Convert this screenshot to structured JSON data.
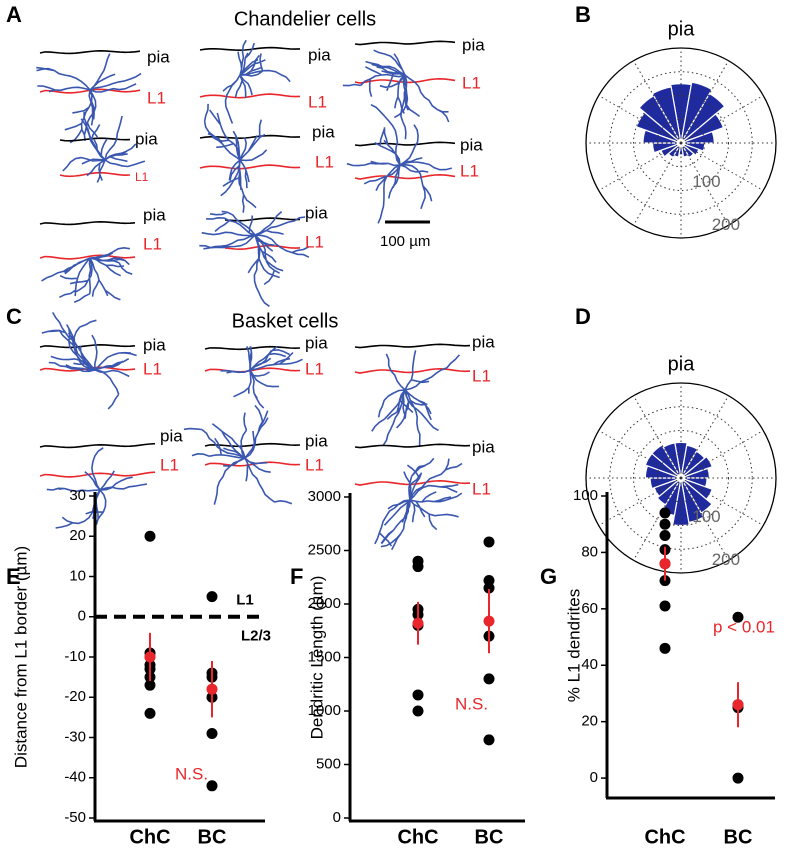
{
  "panel_labels": [
    "A",
    "B",
    "C",
    "D",
    "E",
    "F",
    "G"
  ],
  "chandelier": {
    "title": "Chandelier cells",
    "pia": "pia",
    "l1": "L1",
    "scale_bar": "100 µm"
  },
  "basket": {
    "title": "Basket cells",
    "pia": "pia",
    "l1": "L1"
  },
  "chart_data": [
    {
      "type": "rose",
      "title": "pia",
      "color": "#1f2a9e",
      "values": [
        125,
        130,
        120,
        95,
        70,
        50,
        40,
        35,
        30,
        25,
        30,
        35,
        45,
        60,
        80,
        100,
        115,
        120
      ],
      "rlim": [
        0,
        200
      ],
      "rticks": [
        100,
        200
      ],
      "rgrid": [
        50,
        100,
        150
      ]
    },
    {
      "type": "rose",
      "title": "pia",
      "color": "#1f2a9e",
      "values": [
        75,
        70,
        65,
        70,
        60,
        55,
        70,
        85,
        95,
        100,
        80,
        65,
        60,
        65,
        75,
        80,
        80,
        75
      ],
      "rlim": [
        0,
        200
      ],
      "rticks": [
        100,
        200
      ],
      "rgrid": [
        50,
        100,
        150
      ]
    },
    {
      "type": "strip",
      "y_label": "Distance from L1 border (µm)",
      "categories": [
        "ChC",
        "BC"
      ],
      "points": [
        [
          20,
          -9,
          -10,
          -12,
          -13,
          -15,
          -17,
          -24
        ],
        [
          5,
          -14,
          -15,
          -20,
          -29,
          -42
        ]
      ],
      "mean": [
        -10,
        -18
      ],
      "error": [
        6,
        7
      ],
      "point_color": "#000000",
      "mean_color": "#e8262b",
      "ylim": [
        -50,
        30
      ],
      "yticks": [
        -50,
        -40,
        -30,
        -20,
        -10,
        0,
        10,
        20,
        30
      ],
      "annotation": "N.S.",
      "reference_line": 0,
      "reference_labels": [
        "L1",
        "L2/3"
      ]
    },
    {
      "type": "strip",
      "y_label": "Dendritic Length (µm)",
      "categories": [
        "ChC",
        "BC"
      ],
      "points": [
        [
          2400,
          2350,
          1950,
          1900,
          1800,
          1150,
          1000
        ],
        [
          2580,
          2220,
          2150,
          1700,
          1300,
          730
        ]
      ],
      "mean": [
        1820,
        1840
      ],
      "error": [
        200,
        300
      ],
      "point_color": "#000000",
      "mean_color": "#e8262b",
      "ylim": [
        0,
        3000
      ],
      "yticks": [
        0,
        500,
        1000,
        1500,
        2000,
        2500,
        3000
      ],
      "annotation": "N.S."
    },
    {
      "type": "strip",
      "y_label": "% L1 dendrites",
      "categories": [
        "ChC",
        "BC"
      ],
      "points": [
        [
          94,
          90,
          86,
          81,
          76,
          70,
          61,
          46
        ],
        [
          57,
          26,
          25,
          0
        ]
      ],
      "mean": [
        76,
        26
      ],
      "error": [
        6,
        8
      ],
      "point_color": "#000000",
      "mean_color": "#e8262b",
      "ylim": [
        -6,
        100
      ],
      "yticks": [
        0,
        20,
        40,
        60,
        80,
        100
      ],
      "annotation": "p < 0.01"
    }
  ]
}
